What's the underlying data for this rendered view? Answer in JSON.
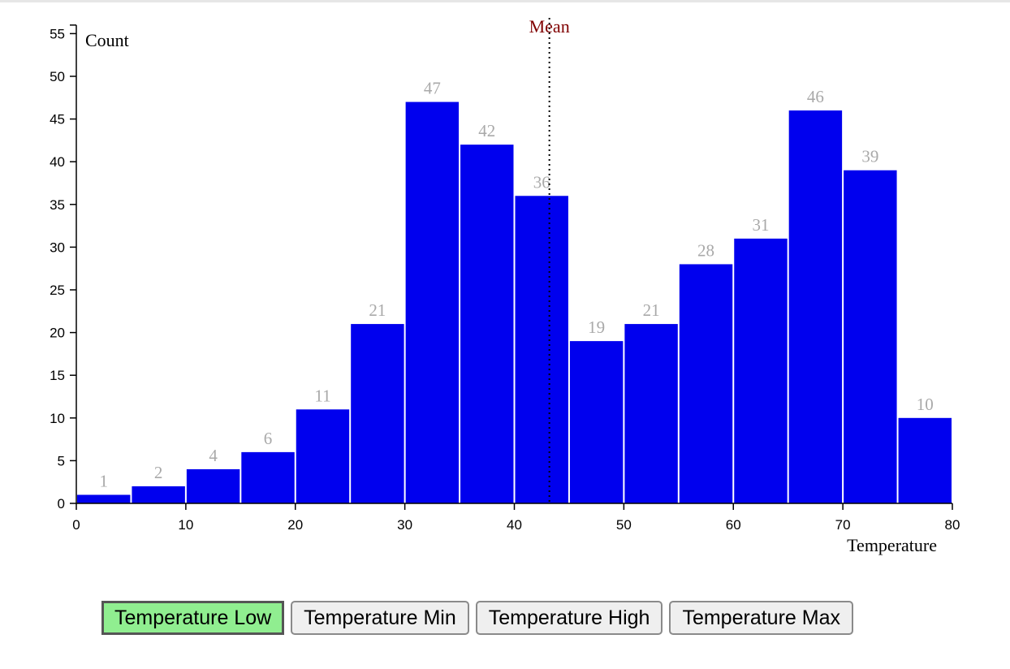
{
  "chart_data": {
    "type": "bar",
    "subtype": "histogram",
    "bins": [
      {
        "x0": 0,
        "x1": 5,
        "count": 1
      },
      {
        "x0": 5,
        "x1": 10,
        "count": 2
      },
      {
        "x0": 10,
        "x1": 15,
        "count": 4
      },
      {
        "x0": 15,
        "x1": 20,
        "count": 6
      },
      {
        "x0": 20,
        "x1": 25,
        "count": 11
      },
      {
        "x0": 25,
        "x1": 30,
        "count": 21
      },
      {
        "x0": 30,
        "x1": 35,
        "count": 47
      },
      {
        "x0": 35,
        "x1": 40,
        "count": 42
      },
      {
        "x0": 40,
        "x1": 45,
        "count": 36
      },
      {
        "x0": 45,
        "x1": 50,
        "count": 19
      },
      {
        "x0": 50,
        "x1": 55,
        "count": 21
      },
      {
        "x0": 55,
        "x1": 60,
        "count": 28
      },
      {
        "x0": 60,
        "x1": 65,
        "count": 31
      },
      {
        "x0": 65,
        "x1": 70,
        "count": 46
      },
      {
        "x0": 70,
        "x1": 75,
        "count": 39
      },
      {
        "x0": 75,
        "x1": 80,
        "count": 10
      }
    ],
    "xlabel": "Temperature",
    "ylabel": "Count",
    "xlim": [
      0,
      80
    ],
    "ylim": [
      0,
      56
    ],
    "xticks": [
      0,
      10,
      20,
      30,
      40,
      50,
      60,
      70,
      80
    ],
    "yticks": [
      0,
      5,
      10,
      15,
      20,
      25,
      30,
      35,
      40,
      45,
      50,
      55
    ],
    "mean": {
      "label": "Mean",
      "value": 43.2,
      "color": "#800000"
    },
    "bar_color": "#0000ee",
    "bar_label_color": "#a9a9a9",
    "grid": false
  },
  "buttons": [
    {
      "label": "Temperature Low",
      "active": true
    },
    {
      "label": "Temperature Min",
      "active": false
    },
    {
      "label": "Temperature High",
      "active": false
    },
    {
      "label": "Temperature Max",
      "active": false
    }
  ],
  "colors": {
    "active_button_bg": "#90ee90",
    "button_bg": "#efefef"
  }
}
